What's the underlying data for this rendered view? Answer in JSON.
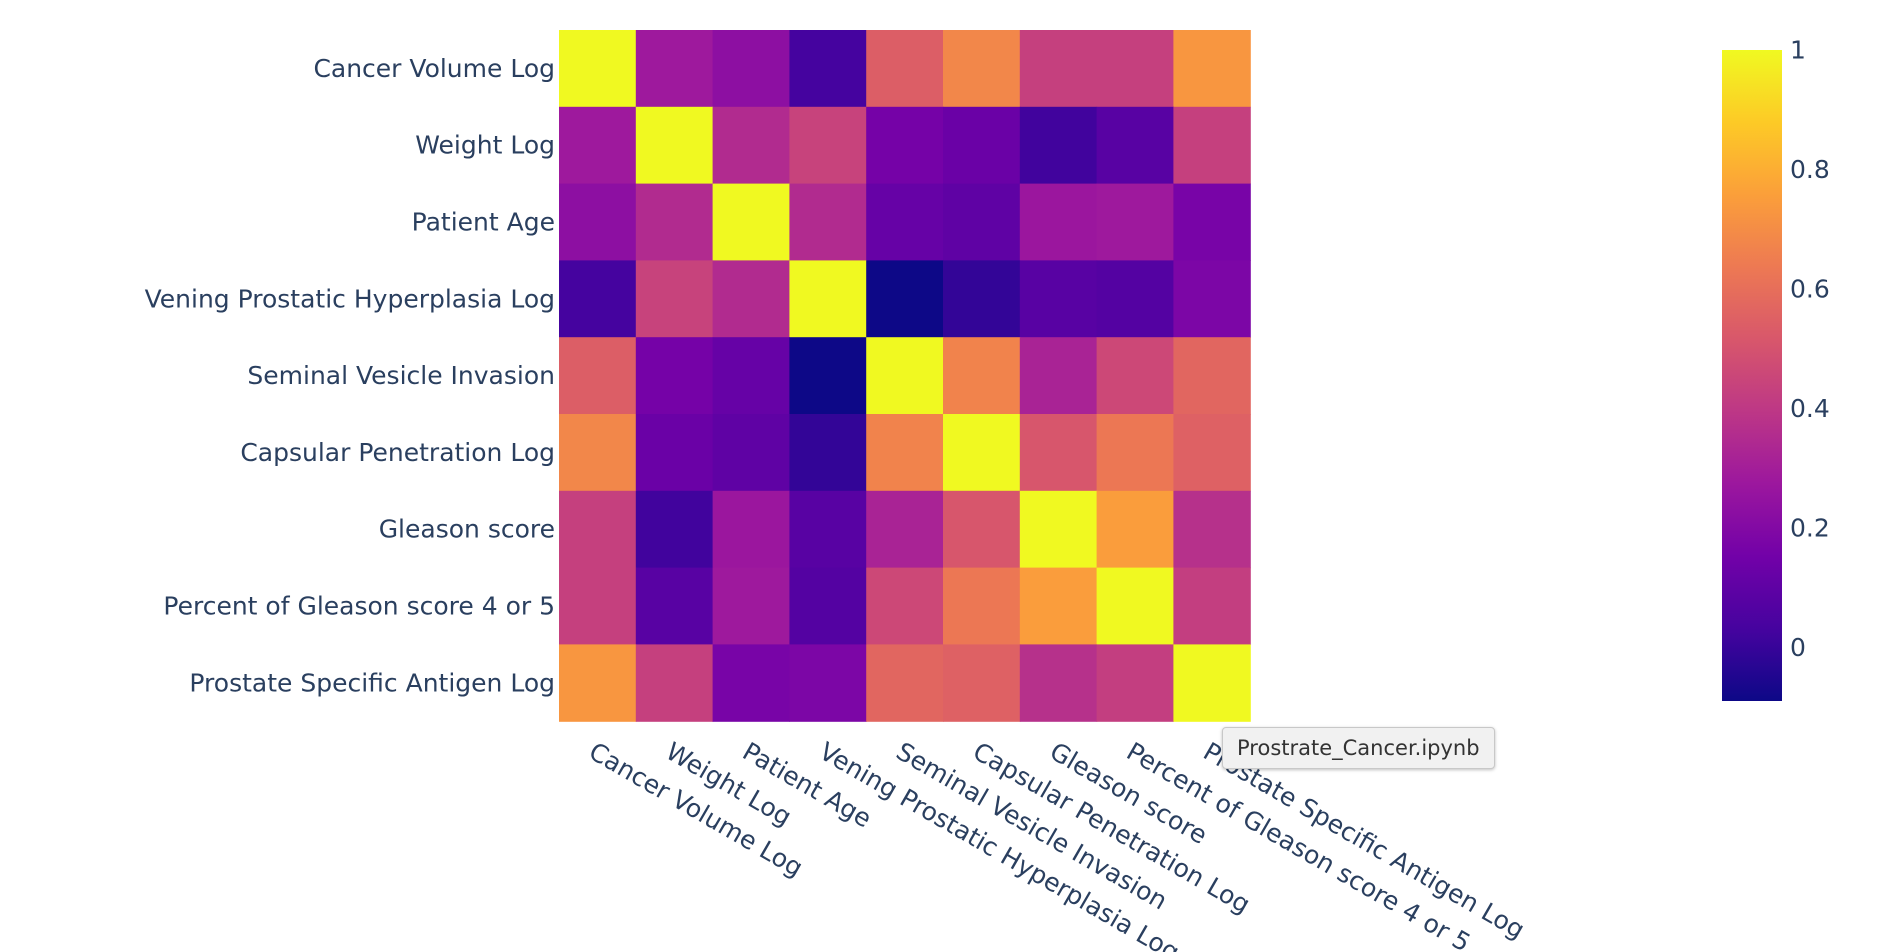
{
  "tooltip": {
    "text": "Prostrate_Cancer.ipynb"
  },
  "chart_data": {
    "type": "heatmap",
    "title": "",
    "xlabel": "",
    "ylabel": "",
    "colorscale": "plasma",
    "zmin": -0.09,
    "zmax": 1.0,
    "colorbar_ticks": [
      0,
      0.2,
      0.4,
      0.6,
      0.8,
      1
    ],
    "colorbar_tick_labels": [
      "0",
      "0.2",
      "0.4",
      "0.6",
      "0.8",
      "1"
    ],
    "x": [
      "Cancer Volume Log",
      "Weight Log",
      "Patient Age",
      "Vening Prostatic Hyperplasia Log",
      "Seminal Vesicle Invasion",
      "Capsular Penetration Log",
      "Gleason score",
      "Percent of Gleason score 4 or 5",
      "Prostate Specific Antigen Log"
    ],
    "y": [
      "Cancer Volume Log",
      "Weight Log",
      "Patient Age",
      "Vening Prostatic Hyperplasia Log",
      "Seminal Vesicle Invasion",
      "Capsular Penetration Log",
      "Gleason score",
      "Percent of Gleason score 4 or 5",
      "Prostate Specific Antigen Log"
    ],
    "z": [
      [
        1.0,
        0.28,
        0.23,
        0.03,
        0.54,
        0.68,
        0.43,
        0.43,
        0.73
      ],
      [
        0.28,
        1.0,
        0.35,
        0.44,
        0.16,
        0.13,
        0.02,
        0.08,
        0.43
      ],
      [
        0.23,
        0.35,
        1.0,
        0.35,
        0.12,
        0.1,
        0.27,
        0.28,
        0.17
      ],
      [
        0.03,
        0.44,
        0.35,
        1.0,
        -0.09,
        -0.01,
        0.08,
        0.07,
        0.18
      ],
      [
        0.54,
        0.16,
        0.12,
        -0.09,
        1.0,
        0.67,
        0.32,
        0.46,
        0.57
      ],
      [
        0.68,
        0.13,
        0.1,
        -0.01,
        0.67,
        1.0,
        0.51,
        0.63,
        0.55
      ],
      [
        0.43,
        0.02,
        0.27,
        0.08,
        0.32,
        0.51,
        1.0,
        0.75,
        0.37
      ],
      [
        0.43,
        0.08,
        0.28,
        0.07,
        0.46,
        0.63,
        0.75,
        1.0,
        0.42
      ],
      [
        0.73,
        0.43,
        0.17,
        0.18,
        0.57,
        0.55,
        0.37,
        0.42,
        1.0
      ]
    ]
  }
}
